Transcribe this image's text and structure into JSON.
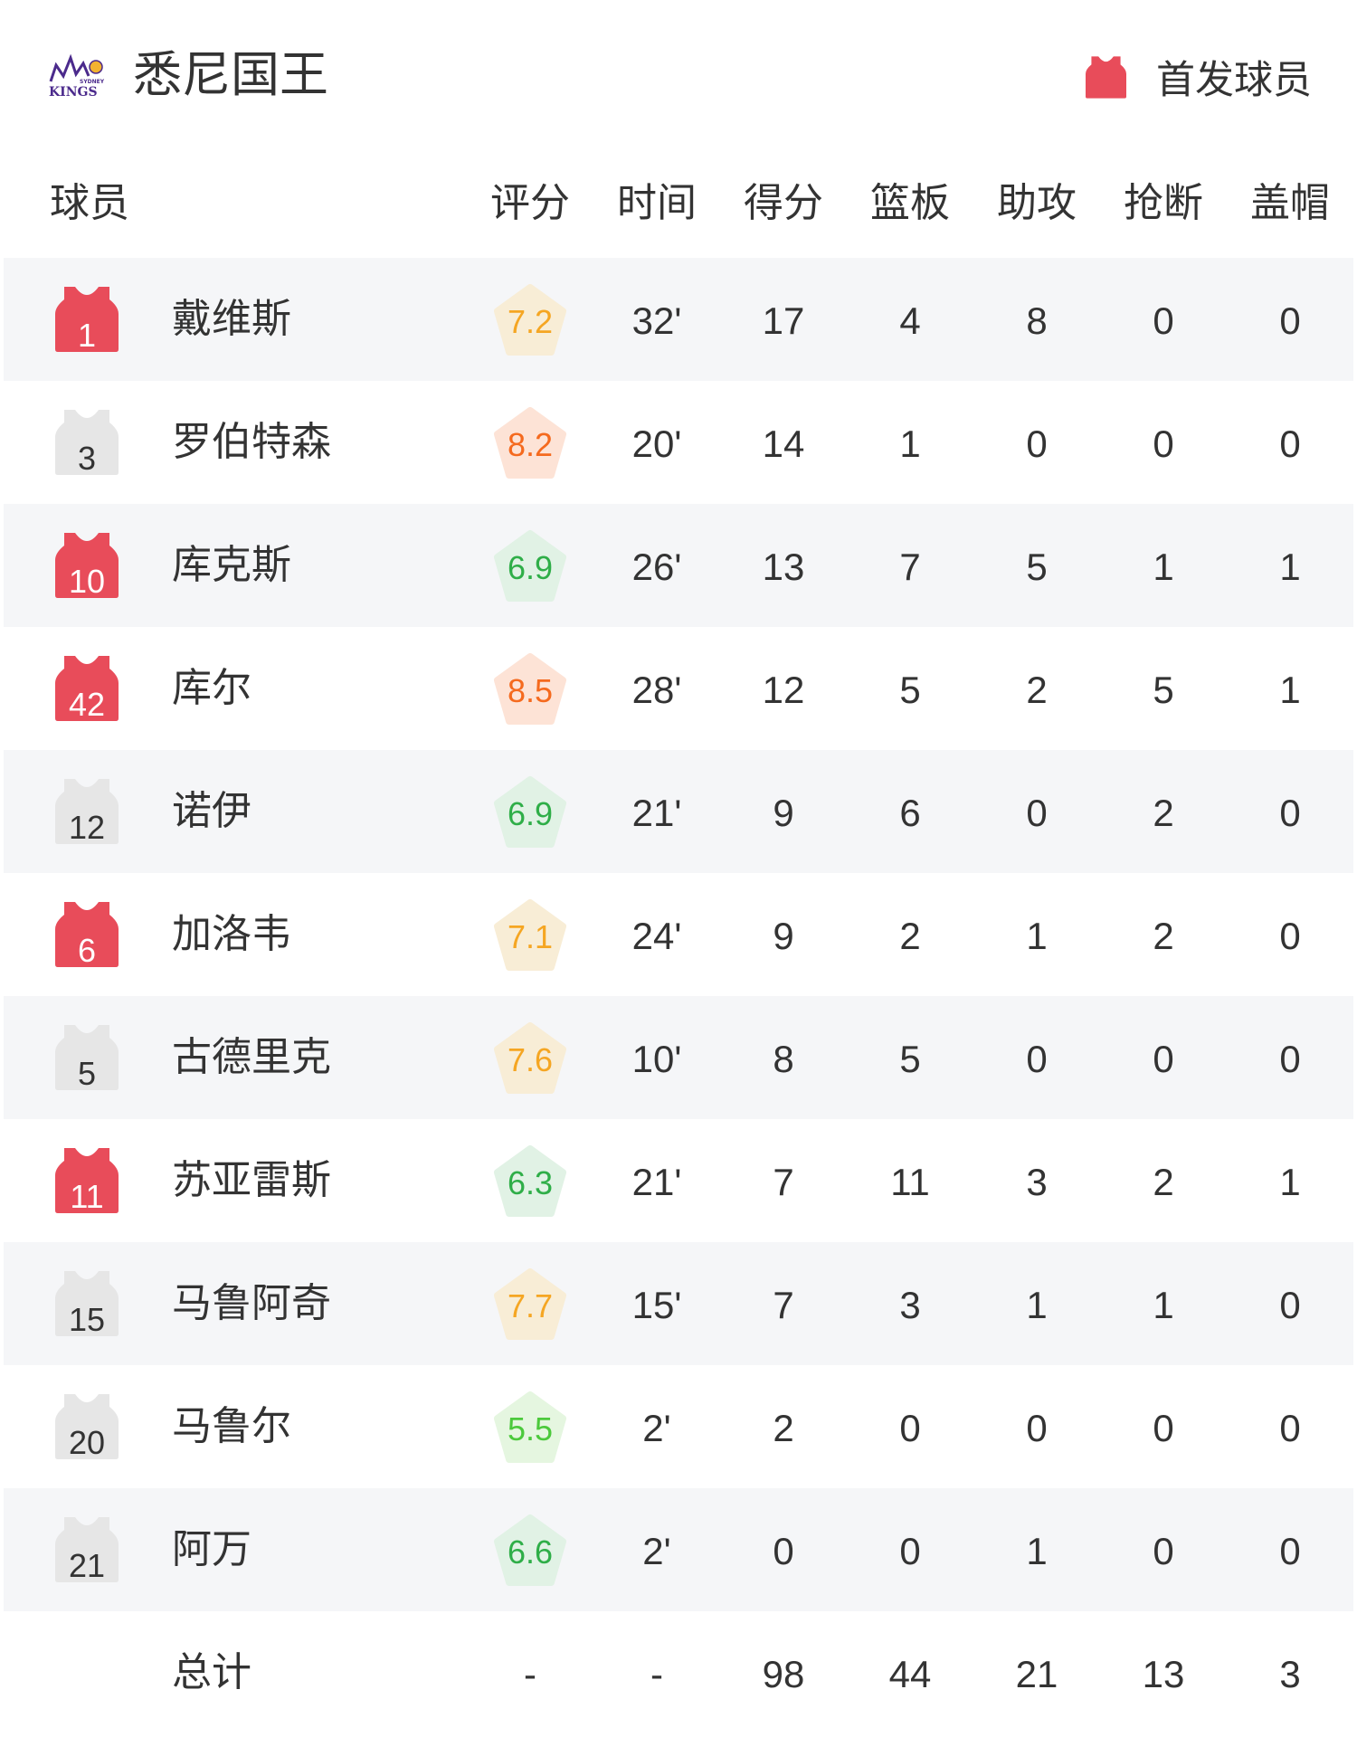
{
  "header": {
    "team_name": "悉尼国王",
    "logo_text": "SYDNEY KINGS",
    "legend_label": "首发球员",
    "legend_icon": "jersey-icon"
  },
  "colors": {
    "starter": "#e84c5a",
    "bench": "#e6e6e6",
    "row_alt": "#f5f6f8",
    "rating_yellow_text": "#f5a623",
    "rating_yellow_bg": "#f8edd6",
    "rating_orange_text": "#f56a1e",
    "rating_orange_bg": "#fde3d6",
    "rating_green_text": "#2fae48",
    "rating_green_bg": "#e1f2e5",
    "rating_lightgreen_text": "#4cc93c",
    "rating_lightgreen_bg": "#e5f6e0"
  },
  "columns": [
    "球员",
    "评分",
    "时间",
    "得分",
    "篮板",
    "助攻",
    "抢断",
    "盖帽"
  ],
  "players": [
    {
      "number": "1",
      "name": "戴维斯",
      "starter": true,
      "rating": "7.2",
      "rating_tier": "yellow",
      "time": "32'",
      "pts": "17",
      "reb": "4",
      "ast": "8",
      "stl": "0",
      "blk": "0"
    },
    {
      "number": "3",
      "name": "罗伯特森",
      "starter": false,
      "rating": "8.2",
      "rating_tier": "orange",
      "time": "20'",
      "pts": "14",
      "reb": "1",
      "ast": "0",
      "stl": "0",
      "blk": "0"
    },
    {
      "number": "10",
      "name": "库克斯",
      "starter": true,
      "rating": "6.9",
      "rating_tier": "green",
      "time": "26'",
      "pts": "13",
      "reb": "7",
      "ast": "5",
      "stl": "1",
      "blk": "1"
    },
    {
      "number": "42",
      "name": "库尔",
      "starter": true,
      "rating": "8.5",
      "rating_tier": "orange",
      "time": "28'",
      "pts": "12",
      "reb": "5",
      "ast": "2",
      "stl": "5",
      "blk": "1"
    },
    {
      "number": "12",
      "name": "诺伊",
      "starter": false,
      "rating": "6.9",
      "rating_tier": "green",
      "time": "21'",
      "pts": "9",
      "reb": "6",
      "ast": "0",
      "stl": "2",
      "blk": "0"
    },
    {
      "number": "6",
      "name": "加洛韦",
      "starter": true,
      "rating": "7.1",
      "rating_tier": "yellow",
      "time": "24'",
      "pts": "9",
      "reb": "2",
      "ast": "1",
      "stl": "2",
      "blk": "0"
    },
    {
      "number": "5",
      "name": "古德里克",
      "starter": false,
      "rating": "7.6",
      "rating_tier": "yellow",
      "time": "10'",
      "pts": "8",
      "reb": "5",
      "ast": "0",
      "stl": "0",
      "blk": "0"
    },
    {
      "number": "11",
      "name": "苏亚雷斯",
      "starter": true,
      "rating": "6.3",
      "rating_tier": "green",
      "time": "21'",
      "pts": "7",
      "reb": "11",
      "ast": "3",
      "stl": "2",
      "blk": "1"
    },
    {
      "number": "15",
      "name": "马鲁阿奇",
      "starter": false,
      "rating": "7.7",
      "rating_tier": "yellow",
      "time": "15'",
      "pts": "7",
      "reb": "3",
      "ast": "1",
      "stl": "1",
      "blk": "0"
    },
    {
      "number": "20",
      "name": "马鲁尔",
      "starter": false,
      "rating": "5.5",
      "rating_tier": "lightgreen",
      "time": "2'",
      "pts": "2",
      "reb": "0",
      "ast": "0",
      "stl": "0",
      "blk": "0"
    },
    {
      "number": "21",
      "name": "阿万",
      "starter": false,
      "rating": "6.6",
      "rating_tier": "green",
      "time": "2'",
      "pts": "0",
      "reb": "0",
      "ast": "1",
      "stl": "0",
      "blk": "0"
    }
  ],
  "totals": {
    "label": "总计",
    "rating": "-",
    "time": "-",
    "pts": "98",
    "reb": "44",
    "ast": "21",
    "stl": "13",
    "blk": "3"
  }
}
